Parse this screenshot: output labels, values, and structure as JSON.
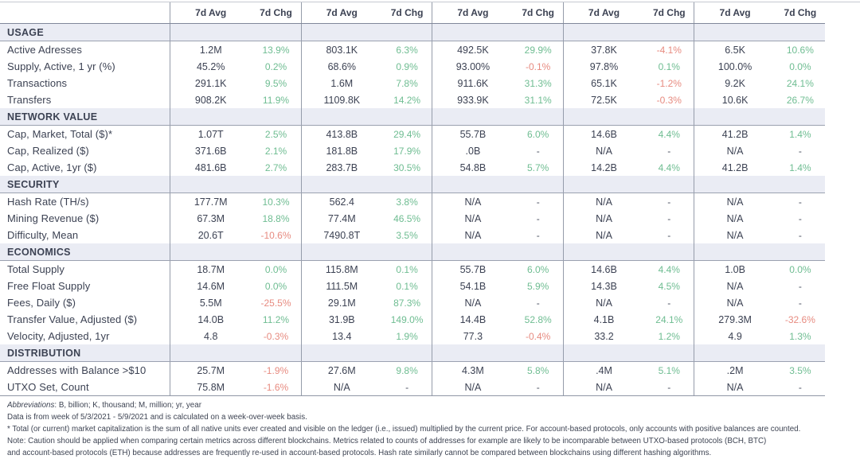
{
  "colors": {
    "positive": "#6fbd92",
    "negative": "#e78b80",
    "text": "#3c4253",
    "section_bg": "#eaecf4",
    "divider": "#959caa"
  },
  "table": {
    "column_groups": 5,
    "header": {
      "avg_label": "7d Avg",
      "chg_label": "7d Chg"
    },
    "sections": [
      {
        "title": "USAGE",
        "rows": [
          {
            "label": "Active Adresses",
            "cells": [
              [
                "1.2M",
                "13.9%"
              ],
              [
                "803.1K",
                "6.3%"
              ],
              [
                "492.5K",
                "29.9%"
              ],
              [
                "37.8K",
                "-4.1%"
              ],
              [
                "6.5K",
                "10.6%"
              ]
            ]
          },
          {
            "label": "Supply, Active, 1 yr (%)",
            "cells": [
              [
                "45.2%",
                "0.2%"
              ],
              [
                "68.6%",
                "0.9%"
              ],
              [
                "93.00%",
                "-0.1%"
              ],
              [
                "97.8%",
                "0.1%"
              ],
              [
                "100.0%",
                "0.0%"
              ]
            ]
          },
          {
            "label": "Transactions",
            "cells": [
              [
                "291.1K",
                "9.5%"
              ],
              [
                "1.6M",
                "7.8%"
              ],
              [
                "911.6K",
                "31.3%"
              ],
              [
                "65.1K",
                "-1.2%"
              ],
              [
                "9.2K",
                "24.1%"
              ]
            ]
          },
          {
            "label": "Transfers",
            "cells": [
              [
                "908.2K",
                "11.9%"
              ],
              [
                "1109.8K",
                "14.2%"
              ],
              [
                "933.9K",
                "31.1%"
              ],
              [
                "72.5K",
                "-0.3%"
              ],
              [
                "10.6K",
                "26.7%"
              ]
            ]
          }
        ]
      },
      {
        "title": "NETWORK VALUE",
        "rows": [
          {
            "label": "Cap, Market, Total ($)*",
            "cells": [
              [
                "1.07T",
                "2.5%"
              ],
              [
                "413.8B",
                "29.4%"
              ],
              [
                "55.7B",
                "6.0%"
              ],
              [
                "14.6B",
                "4.4%"
              ],
              [
                "41.2B",
                "1.4%"
              ]
            ]
          },
          {
            "label": "Cap, Realized ($)",
            "cells": [
              [
                "371.6B",
                "2.1%"
              ],
              [
                "181.8B",
                "17.9%"
              ],
              [
                ".0B",
                "-"
              ],
              [
                "N/A",
                "-"
              ],
              [
                "N/A",
                "-"
              ]
            ]
          },
          {
            "label": "Cap, Active, 1yr ($)",
            "cells": [
              [
                "481.6B",
                "2.7%"
              ],
              [
                "283.7B",
                "30.5%"
              ],
              [
                "54.8B",
                "5.7%"
              ],
              [
                "14.2B",
                "4.4%"
              ],
              [
                "41.2B",
                "1.4%"
              ]
            ]
          }
        ]
      },
      {
        "title": "SECURITY",
        "rows": [
          {
            "label": "Hash Rate (TH/s)",
            "cells": [
              [
                "177.7M",
                "10.3%"
              ],
              [
                "562.4",
                "3.8%"
              ],
              [
                "N/A",
                "-"
              ],
              [
                "N/A",
                "-"
              ],
              [
                "N/A",
                "-"
              ]
            ]
          },
          {
            "label": "Mining Revenue ($)",
            "cells": [
              [
                "67.3M",
                "18.8%"
              ],
              [
                "77.4M",
                "46.5%"
              ],
              [
                "N/A",
                "-"
              ],
              [
                "N/A",
                "-"
              ],
              [
                "N/A",
                "-"
              ]
            ]
          },
          {
            "label": "Difficulty, Mean",
            "cells": [
              [
                "20.6T",
                "-10.6%"
              ],
              [
                "7490.8T",
                "3.5%"
              ],
              [
                "N/A",
                "-"
              ],
              [
                "N/A",
                "-"
              ],
              [
                "N/A",
                "-"
              ]
            ]
          }
        ]
      },
      {
        "title": "ECONOMICS",
        "rows": [
          {
            "label": "Total Supply",
            "cells": [
              [
                "18.7M",
                "0.0%"
              ],
              [
                "115.8M",
                "0.1%"
              ],
              [
                "55.7B",
                "6.0%"
              ],
              [
                "14.6B",
                "4.4%"
              ],
              [
                "1.0B",
                "0.0%"
              ]
            ]
          },
          {
            "label": "Free Float Supply",
            "cells": [
              [
                "14.6M",
                "0.0%"
              ],
              [
                "111.5M",
                "0.1%"
              ],
              [
                "54.1B",
                "5.9%"
              ],
              [
                "14.3B",
                "4.5%"
              ],
              [
                "N/A",
                "-"
              ]
            ]
          },
          {
            "label": "Fees, Daily ($)",
            "cells": [
              [
                "5.5M",
                "-25.5%"
              ],
              [
                "29.1M",
                "87.3%"
              ],
              [
                "N/A",
                "-"
              ],
              [
                "N/A",
                "-"
              ],
              [
                "N/A",
                "-"
              ]
            ]
          },
          {
            "label": "Transfer Value, Adjusted ($)",
            "cells": [
              [
                "14.0B",
                "11.2%"
              ],
              [
                "31.9B",
                "149.0%"
              ],
              [
                "14.4B",
                "52.8%"
              ],
              [
                "4.1B",
                "24.1%"
              ],
              [
                "279.3M",
                "-32.6%"
              ]
            ]
          },
          {
            "label": "Velocity, Adjusted, 1yr",
            "cells": [
              [
                "4.8",
                "-0.3%"
              ],
              [
                "13.4",
                "1.9%"
              ],
              [
                "77.3",
                "-0.4%"
              ],
              [
                "33.2",
                "1.2%"
              ],
              [
                "4.9",
                "1.3%"
              ]
            ]
          }
        ]
      },
      {
        "title": "DISTRIBUTION",
        "rows": [
          {
            "label": "Addresses with Balance >$10",
            "cells": [
              [
                "25.7M",
                "-1.9%"
              ],
              [
                "27.6M",
                "9.8%"
              ],
              [
                "4.3M",
                "5.8%"
              ],
              [
                ".4M",
                "5.1%"
              ],
              [
                ".2M",
                "3.5%"
              ]
            ]
          },
          {
            "label": "UTXO Set, Count",
            "cells": [
              [
                "75.8M",
                "-1.6%"
              ],
              [
                "N/A",
                "-"
              ],
              [
                "N/A",
                "-"
              ],
              [
                "N/A",
                "-"
              ],
              [
                "N/A",
                "-"
              ]
            ]
          }
        ]
      }
    ]
  },
  "footnotes": {
    "abbreviations_label": "Abbreviations",
    "abbreviations_rest": ": B, billion; K, thousand; M, million; yr, year",
    "data_week": "Data is from week of 5/3/2021 - 5/9/2021 and is calculated on a week-over-week basis.",
    "market_cap_note": "* Total (or current) market capitalization is the sum of all native units ever created and visible on the ledger (i.e., issued) multiplied by the current price. For account-based protocols, only accounts with positive balances are counted.",
    "caution_note_line1": "Note: Caution should be applied when comparing certain metrics across different blockchains. Metrics related to counts of addresses for example are likely to be incomparable between UTXO-based protocols (BCH, BTC)",
    "caution_note_line2": "and account-based protocols (ETH) because addresses are frequently re-used in account-based protocols. Hash rate similarly cannot be compared between blockchains using different hashing algorithms."
  }
}
